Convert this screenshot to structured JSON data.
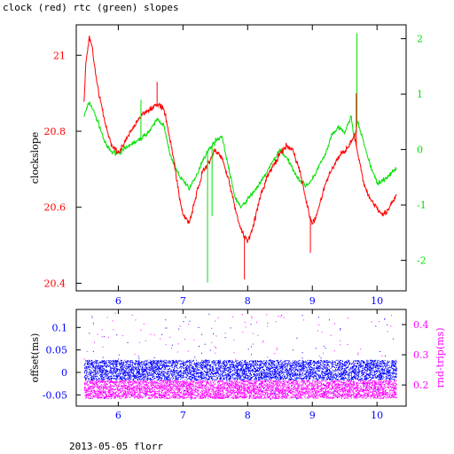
{
  "title": "clock (red) rtc (green) slopes",
  "footer": "2013-05-05 florr",
  "colors": {
    "clock": "#ff0000",
    "rtc": "#00e000",
    "offset": "#0000ff",
    "rtt": "#ff00ff",
    "axis": "#000000"
  },
  "chart_data": [
    {
      "type": "line",
      "title": "clock (red) rtc (green) slopes",
      "xlim": [
        5.35,
        10.45
      ],
      "x_ticks": [
        6,
        7,
        8,
        9,
        10
      ],
      "ylabel": "clockslope",
      "ylim": [
        20.38,
        21.08
      ],
      "y_ticks": [
        20.4,
        20.6,
        20.8,
        21
      ],
      "y_tick_labels": [
        "20.4",
        "20.6",
        "20.8",
        "21"
      ],
      "y2lim": [
        -2.55,
        2.25
      ],
      "y2_ticks": [
        -2,
        -1,
        0,
        1,
        2
      ],
      "series": [
        {
          "name": "clock",
          "axis": "left",
          "x": [
            5.47,
            5.5,
            5.55,
            5.6,
            5.65,
            5.7,
            5.8,
            5.9,
            6.0,
            6.1,
            6.2,
            6.3,
            6.4,
            6.5,
            6.6,
            6.7,
            6.8,
            6.9,
            6.95,
            7.0,
            7.1,
            7.2,
            7.3,
            7.4,
            7.5,
            7.6,
            7.7,
            7.8,
            7.9,
            8.0,
            8.1,
            8.2,
            8.3,
            8.4,
            8.5,
            8.6,
            8.7,
            8.8,
            8.9,
            9.0,
            9.1,
            9.2,
            9.3,
            9.4,
            9.5,
            9.55,
            9.6,
            9.65,
            9.7,
            9.8,
            9.9,
            10.0,
            10.1,
            10.2,
            10.3
          ],
          "y": [
            20.88,
            20.98,
            21.05,
            21.02,
            20.95,
            20.9,
            20.82,
            20.76,
            20.74,
            20.77,
            20.8,
            20.83,
            20.85,
            20.86,
            20.87,
            20.86,
            20.78,
            20.68,
            20.62,
            20.58,
            20.56,
            20.63,
            20.69,
            20.72,
            20.75,
            20.73,
            20.68,
            20.6,
            20.54,
            20.51,
            20.56,
            20.63,
            20.68,
            20.71,
            20.74,
            20.76,
            20.75,
            20.7,
            20.62,
            20.55,
            20.6,
            20.66,
            20.7,
            20.73,
            20.75,
            20.76,
            20.77,
            20.79,
            20.74,
            20.66,
            20.62,
            20.6,
            20.58,
            20.6,
            20.63
          ]
        },
        {
          "name": "rtc",
          "axis": "right",
          "x": [
            5.47,
            5.5,
            5.55,
            5.6,
            5.65,
            5.7,
            5.8,
            5.9,
            6.0,
            6.1,
            6.2,
            6.3,
            6.4,
            6.5,
            6.6,
            6.7,
            6.8,
            6.9,
            6.95,
            7.0,
            7.1,
            7.2,
            7.3,
            7.4,
            7.5,
            7.6,
            7.7,
            7.8,
            7.9,
            8.0,
            8.1,
            8.2,
            8.3,
            8.4,
            8.5,
            8.6,
            8.7,
            8.8,
            8.9,
            9.0,
            9.1,
            9.2,
            9.3,
            9.4,
            9.5,
            9.55,
            9.6,
            9.65,
            9.7,
            9.8,
            9.9,
            10.0,
            10.1,
            10.2,
            10.3
          ],
          "y": [
            0.6,
            0.7,
            0.85,
            0.75,
            0.6,
            0.45,
            0.1,
            -0.05,
            -0.05,
            0.0,
            0.1,
            0.15,
            0.25,
            0.35,
            0.55,
            0.45,
            -0.1,
            -0.35,
            -0.5,
            -0.55,
            -0.7,
            -0.5,
            -0.2,
            0.0,
            0.15,
            0.25,
            -0.3,
            -0.85,
            -1.05,
            -0.9,
            -0.75,
            -0.6,
            -0.4,
            -0.2,
            0.0,
            -0.15,
            -0.35,
            -0.55,
            -0.65,
            -0.55,
            -0.3,
            -0.1,
            0.25,
            0.4,
            0.3,
            0.45,
            0.6,
            0.2,
            0.5,
            0.1,
            -0.3,
            -0.6,
            -0.55,
            -0.45,
            -0.35
          ]
        }
      ],
      "spikes": [
        {
          "series": "rtc",
          "x": 9.69,
          "y": 2.1
        },
        {
          "series": "rtc",
          "x": 7.38,
          "y": -2.4
        },
        {
          "series": "rtc",
          "x": 7.45,
          "y": -1.2
        },
        {
          "series": "rtc",
          "x": 6.35,
          "y": 0.9
        },
        {
          "series": "clock",
          "x": 9.68,
          "y": 20.9
        },
        {
          "series": "clock",
          "x": 7.95,
          "y": 20.41
        },
        {
          "series": "clock",
          "x": 8.97,
          "y": 20.48
        },
        {
          "series": "clock",
          "x": 6.6,
          "y": 20.93
        }
      ]
    },
    {
      "type": "scatter",
      "xlim": [
        5.35,
        10.45
      ],
      "x_ticks": [
        6,
        7,
        8,
        9,
        10
      ],
      "ylabel": "offset(ms)",
      "ylim": [
        -0.075,
        0.14
      ],
      "y_ticks": [
        -0.05,
        0,
        0.05,
        0.1
      ],
      "y_tick_labels": [
        "-0.05",
        "0",
        "0.05",
        "0.1"
      ],
      "y2label": "rnd-trip(ms)",
      "y2lim": [
        0.13,
        0.45
      ],
      "y2_ticks": [
        0.2,
        0.3,
        0.4
      ],
      "x_range": [
        5.47,
        10.3
      ],
      "series": [
        {
          "name": "offset",
          "axis": "left",
          "band_center": 0.005,
          "band_halfwidth": 0.022,
          "outlier_range": [
            -0.06,
            0.13
          ]
        },
        {
          "name": "rnd-trip",
          "axis": "right",
          "band_center": 0.185,
          "band_halfwidth": 0.03,
          "outlier_range": [
            0.22,
            0.44
          ]
        }
      ]
    }
  ]
}
